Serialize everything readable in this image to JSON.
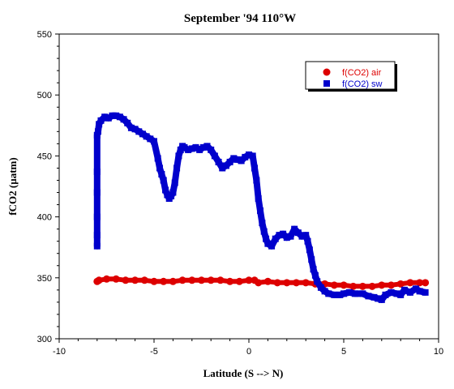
{
  "chart_data": {
    "type": "scatter",
    "title": "September '94 110°W",
    "xlabel": "Latitude (S --> N)",
    "ylabel": "fCO2 (µatm)",
    "xlim": [
      -10,
      10
    ],
    "ylim": [
      300,
      550
    ],
    "xticks": [
      -10,
      -5,
      0,
      5,
      10
    ],
    "yticks": [
      300,
      350,
      400,
      450,
      500,
      550
    ],
    "grid": false,
    "legend_position": "top-right",
    "series": [
      {
        "name": "f(CO2) air",
        "marker": "circle",
        "color": "#dd0000",
        "x": [
          -8.0,
          -7.9,
          -7.5,
          -7.0,
          -6.5,
          -6.0,
          -5.5,
          -5.0,
          -4.5,
          -4.0,
          -3.5,
          -3.0,
          -2.5,
          -2.0,
          -1.5,
          -1.0,
          -0.5,
          0.0,
          0.3,
          0.5,
          1.0,
          1.5,
          2.0,
          2.5,
          3.0,
          3.5,
          4.0,
          4.5,
          5.0,
          5.5,
          6.0,
          6.5,
          7.0,
          7.5,
          8.0,
          8.5,
          9.0,
          9.3
        ],
        "y": [
          347,
          348,
          349,
          349,
          348,
          348,
          348,
          347,
          347,
          347,
          348,
          348,
          348,
          348,
          348,
          347,
          347,
          348,
          348,
          346,
          347,
          346,
          346,
          346,
          346,
          345,
          345,
          344,
          344,
          343,
          343,
          343,
          344,
          344,
          345,
          346,
          346,
          346
        ]
      },
      {
        "name": "f(CO2) sw",
        "marker": "square",
        "color": "#0000cc",
        "x": [
          -8.0,
          -8.0,
          -8.0,
          -8.0,
          -8.0,
          -8.0,
          -7.95,
          -7.9,
          -7.8,
          -7.6,
          -7.4,
          -7.2,
          -7.0,
          -6.8,
          -6.6,
          -6.4,
          -6.2,
          -6.0,
          -5.8,
          -5.6,
          -5.4,
          -5.2,
          -5.0,
          -4.8,
          -4.7,
          -4.6,
          -4.5,
          -4.4,
          -4.3,
          -4.2,
          -4.1,
          -4.0,
          -3.9,
          -3.8,
          -3.7,
          -3.6,
          -3.5,
          -3.4,
          -3.2,
          -3.0,
          -2.8,
          -2.6,
          -2.4,
          -2.2,
          -2.0,
          -1.8,
          -1.6,
          -1.4,
          -1.2,
          -1.0,
          -0.8,
          -0.6,
          -0.4,
          -0.2,
          0.0,
          0.2,
          0.3,
          0.4,
          0.5,
          0.6,
          0.7,
          0.8,
          0.9,
          1.0,
          1.2,
          1.4,
          1.6,
          1.8,
          2.0,
          2.2,
          2.4,
          2.6,
          2.8,
          3.0,
          3.1,
          3.2,
          3.3,
          3.4,
          3.5,
          3.6,
          3.8,
          4.0,
          4.2,
          4.5,
          4.8,
          5.0,
          5.3,
          5.6,
          6.0,
          6.3,
          6.6,
          6.8,
          7.0,
          7.2,
          7.5,
          7.8,
          8.0,
          8.2,
          8.5,
          8.8,
          9.0,
          9.3
        ],
        "y": [
          376,
          385,
          400,
          420,
          437,
          467,
          470,
          476,
          479,
          482,
          481,
          483,
          483,
          482,
          480,
          477,
          473,
          472,
          470,
          468,
          466,
          464,
          462,
          448,
          440,
          435,
          430,
          422,
          418,
          415,
          417,
          420,
          428,
          440,
          450,
          455,
          458,
          457,
          455,
          456,
          457,
          455,
          457,
          458,
          455,
          450,
          445,
          440,
          442,
          445,
          448,
          447,
          446,
          449,
          451,
          450,
          440,
          430,
          415,
          405,
          395,
          388,
          382,
          378,
          376,
          382,
          385,
          386,
          383,
          384,
          390,
          387,
          384,
          385,
          380,
          373,
          365,
          357,
          352,
          347,
          342,
          339,
          337,
          336,
          336,
          337,
          338,
          337,
          337,
          335,
          334,
          333,
          332,
          336,
          338,
          337,
          336,
          340,
          338,
          341,
          339,
          338
        ]
      }
    ]
  }
}
